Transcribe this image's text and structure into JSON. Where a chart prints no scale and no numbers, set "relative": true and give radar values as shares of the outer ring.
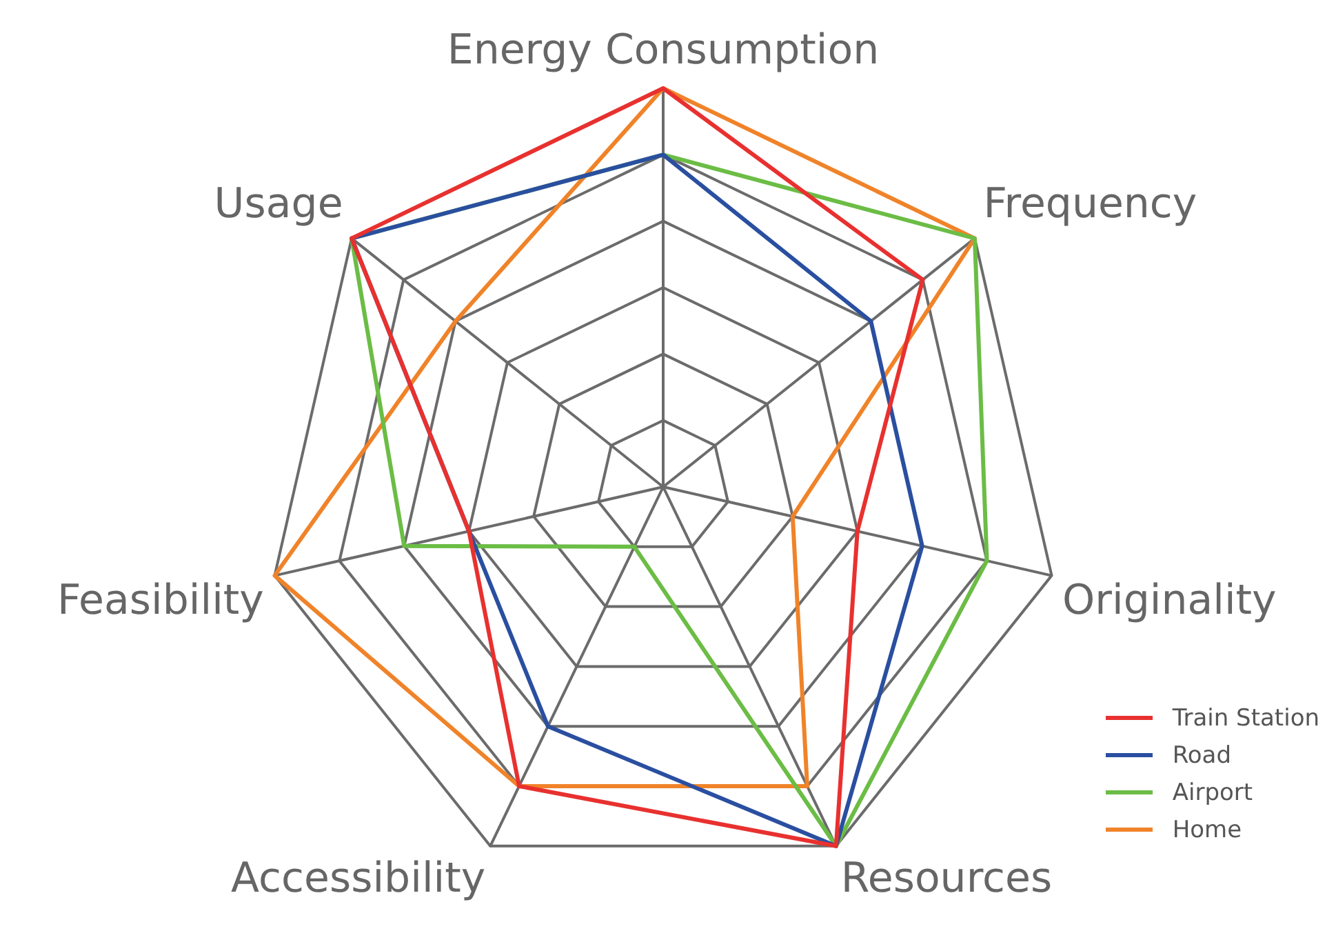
{
  "chart_data": {
    "type": "radar",
    "relative": true,
    "categories": [
      "Energy Consumption",
      "Frequency",
      "Originality",
      "Resources",
      "Accessibility",
      "Feasibility",
      "Usage"
    ],
    "series": [
      {
        "name": "Train Station",
        "color": "#e8312f",
        "values": [
          1,
          0.8333,
          0.5,
          1,
          0.8333,
          0.5,
          1
        ]
      },
      {
        "name": "Road",
        "color": "#2a4fa0",
        "values": [
          0.8333,
          0.6667,
          0.6667,
          1,
          0.6667,
          0.5,
          1
        ]
      },
      {
        "name": "Airport",
        "color": "#6bbd45",
        "values": [
          0.8333,
          1,
          0.8333,
          1,
          0.1667,
          0.6667,
          1
        ]
      },
      {
        "name": "Home",
        "color": "#f08329",
        "values": [
          1,
          1,
          0.3333,
          0.8333,
          0.8333,
          1,
          0.6667
        ]
      }
    ],
    "legend": "bottom right",
    "marker": "none",
    "line_style": "solid",
    "grid": true
  }
}
